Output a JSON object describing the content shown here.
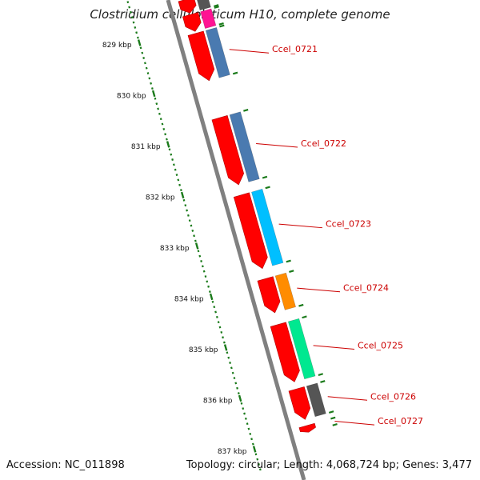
{
  "title": "Clostridium cellulolyticum H10, complete genome",
  "accession": "Accession: NC_011898",
  "summary": "Topology: circular; Length: 4,068,724 bp; Genes: 3,477",
  "colors": {
    "backbone": "#808080",
    "gene_red": "#ff0000",
    "scale": "#1a7a1a",
    "label": "#cc0000",
    "pink": "#ff1493",
    "gray": "#555555",
    "steelblue": "#4a7ab0",
    "orange": "#ff8c00",
    "deepskyblue": "#00bfff",
    "springgreen": "#00e890"
  },
  "ruler": [
    {
      "kbp": 829,
      "label": "829 kbp"
    },
    {
      "kbp": 830,
      "label": "830 kbp"
    },
    {
      "kbp": 831,
      "label": "831 kbp"
    },
    {
      "kbp": 832,
      "label": "832 kbp"
    },
    {
      "kbp": 833,
      "label": "833 kbp"
    },
    {
      "kbp": 834,
      "label": "834 kbp"
    },
    {
      "kbp": 835,
      "label": "835 kbp"
    },
    {
      "kbp": 836,
      "label": "836 kbp"
    },
    {
      "kbp": 837,
      "label": "837 kbp"
    }
  ],
  "genes": [
    {
      "locus": "",
      "start": 828.45,
      "end": 828.72,
      "cog_color": "gray"
    },
    {
      "locus": "",
      "start": 828.75,
      "end": 829.08,
      "cog_color": "pink"
    },
    {
      "locus": "Ccel_0721",
      "start": 829.12,
      "end": 830.05,
      "cog_color": "steelblue"
    },
    {
      "locus": "Ccel_0722",
      "start": 830.78,
      "end": 832.1,
      "cog_color": "steelblue"
    },
    {
      "locus": "Ccel_0723",
      "start": 832.3,
      "end": 833.75,
      "cog_color": "deepskyblue"
    },
    {
      "locus": "Ccel_0724",
      "start": 833.95,
      "end": 834.62,
      "cog_color": "orange"
    },
    {
      "locus": "Ccel_0725",
      "start": 834.85,
      "end": 835.98,
      "cog_color": "springgreen"
    },
    {
      "locus": "Ccel_0726",
      "start": 836.12,
      "end": 836.72,
      "cog_color": "gray"
    },
    {
      "locus": "Ccel_0727",
      "start": 836.84,
      "end": 836.97,
      "cog_color": ""
    }
  ]
}
